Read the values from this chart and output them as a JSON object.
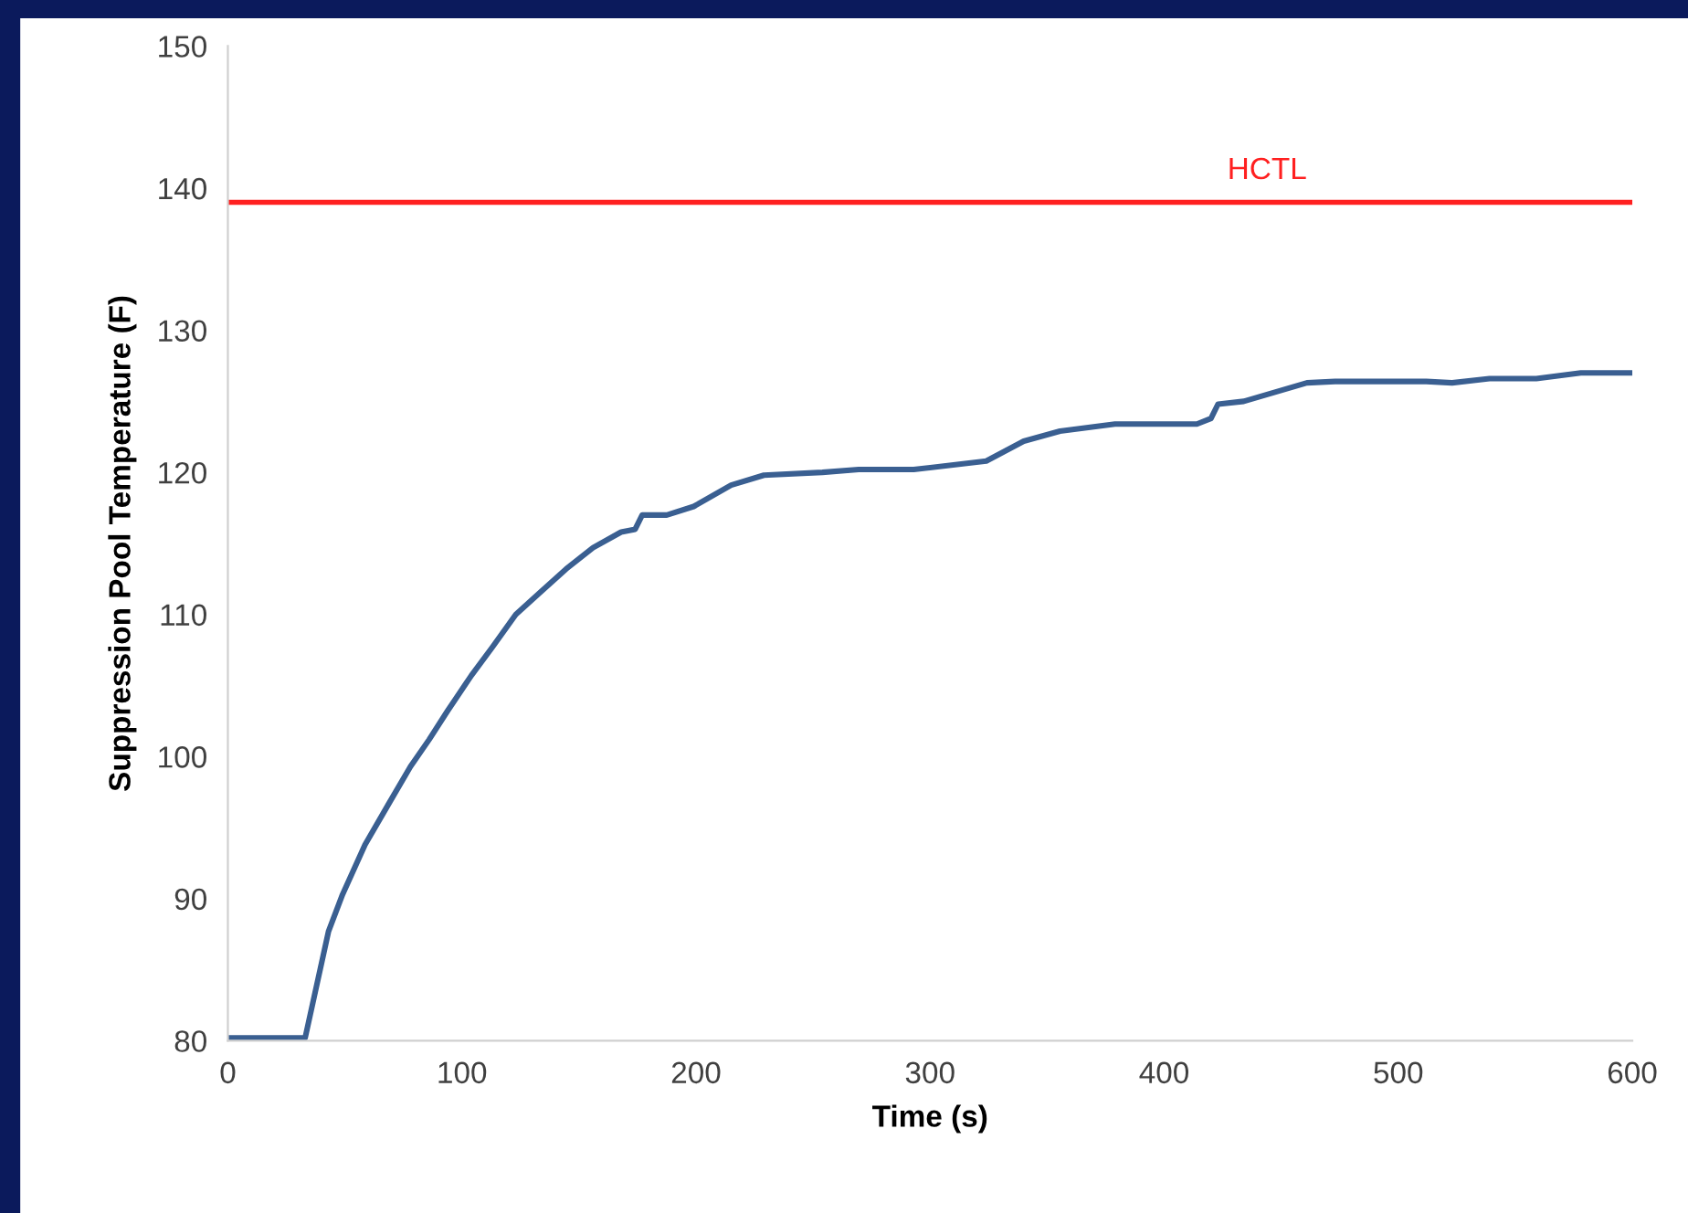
{
  "chart_data": {
    "type": "line",
    "xlabel": "Time (s)",
    "ylabel": "Suppression Pool Temperature (F)",
    "x": [
      0,
      33,
      43,
      49,
      58.6,
      68.8,
      78,
      86,
      93.8,
      104,
      113,
      123,
      133,
      144.5,
      156,
      168,
      174,
      177,
      187.5,
      199,
      215,
      229,
      254,
      269.5,
      293,
      324,
      340,
      355.5,
      379,
      414,
      420,
      423,
      434,
      461,
      473,
      512,
      523,
      539,
      559,
      578,
      600
    ],
    "series": [
      {
        "color": "#3a5f91",
        "values": [
          80.2,
          80.2,
          87.7,
          90.3,
          93.8,
          96.7,
          99.3,
          101.2,
          103.2,
          105.7,
          107.7,
          110,
          111.5,
          113.2,
          114.7,
          115.8,
          116,
          117,
          117,
          117.6,
          119.1,
          119.8,
          120,
          120.2,
          120.2,
          120.8,
          122.2,
          122.9,
          123.4,
          123.4,
          123.8,
          124.8,
          125,
          126.3,
          126.4,
          126.4,
          126.3,
          126.6,
          126.6,
          127,
          127
        ]
      }
    ],
    "ref_lines": [
      {
        "axis": "y",
        "value": 139,
        "label": "HCTL",
        "color": "#ff2020"
      }
    ],
    "xlim": [
      0,
      600
    ],
    "xticks": [
      0,
      100,
      200,
      300,
      400,
      500,
      600
    ],
    "ylim": [
      80,
      150
    ],
    "yticks": [
      80,
      90,
      100,
      110,
      120,
      130,
      140,
      150
    ],
    "grid": false,
    "line_style": "solid",
    "marker": "none"
  }
}
